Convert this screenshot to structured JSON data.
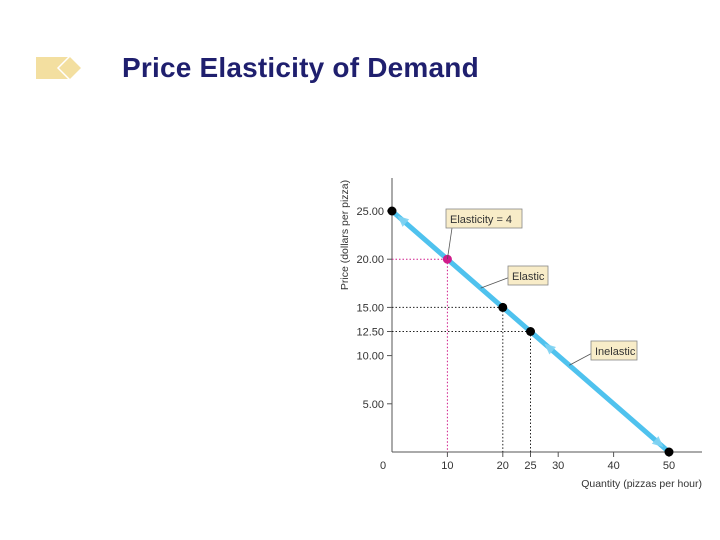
{
  "slide": {
    "title": "Price Elasticity of Demand"
  },
  "colors": {
    "title": "#1f1f6e",
    "bullet": "#f3dfa0",
    "curve": "#4fc2ee",
    "highlight": "#d01c8b",
    "point": "#000000",
    "callout_fill": "#f8ecc8",
    "callout_border": "#888888"
  },
  "chart_data": {
    "type": "line",
    "xlabel": "Quantity (pizzas per hour)",
    "ylabel": "Price (dollars per pizza)",
    "xlim": [
      0,
      50
    ],
    "ylim": [
      0,
      25
    ],
    "x_ticks": [
      0,
      10,
      20,
      25,
      30,
      40,
      50
    ],
    "x_tick_labels": [
      "0",
      "10",
      "20",
      "25",
      "30",
      "40",
      "50"
    ],
    "y_ticks": [
      5,
      10,
      12.5,
      15,
      20,
      25
    ],
    "y_tick_labels": [
      "5.00",
      "10.00",
      "12.50",
      "15.00",
      "20.00",
      "25.00"
    ],
    "highlight_x_tick": 10,
    "highlight_y_tick": 20,
    "series": [
      {
        "x": [
          0,
          50
        ],
        "y": [
          25,
          0
        ]
      }
    ],
    "points": [
      {
        "x": 0,
        "y": 25,
        "color": "black"
      },
      {
        "x": 10,
        "y": 20,
        "color": "magenta"
      },
      {
        "x": 20,
        "y": 15,
        "color": "black"
      },
      {
        "x": 25,
        "y": 12.5,
        "color": "black"
      },
      {
        "x": 50,
        "y": 0,
        "color": "black"
      }
    ],
    "guides": [
      {
        "x": 10,
        "y": 20,
        "color": "magenta"
      },
      {
        "x": 20,
        "y": 15,
        "color": "black"
      },
      {
        "x": 25,
        "y": 12.5,
        "color": "black"
      }
    ],
    "annotations": [
      {
        "text": "Elasticity = 4",
        "point_x": 10,
        "point_y": 20
      },
      {
        "text": "Elastic",
        "point_x": 16,
        "point_y": 17
      },
      {
        "text": "Inelastic",
        "point_x": 32,
        "point_y": 9
      }
    ],
    "grid": false,
    "legend": "none"
  }
}
